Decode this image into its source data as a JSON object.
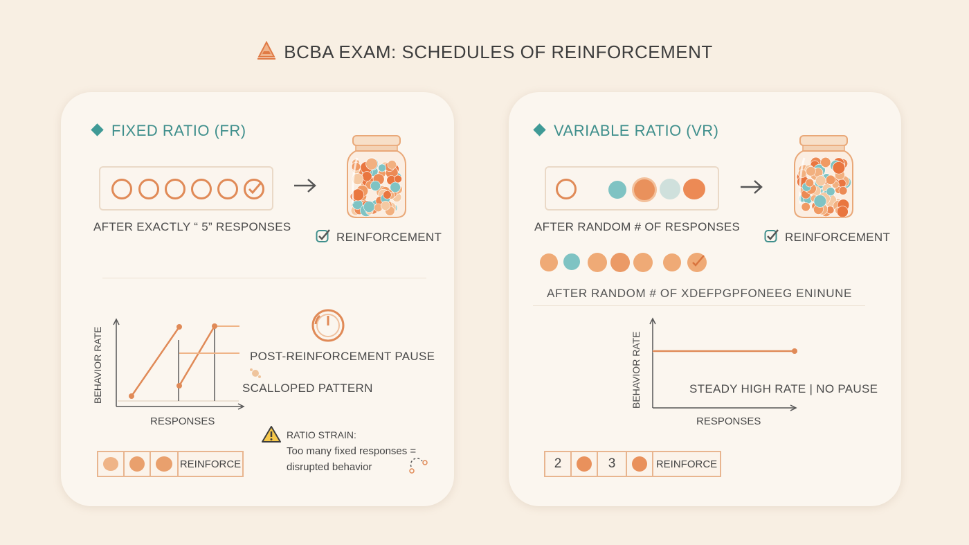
{
  "title": "BCBA EXAM: SCHEDULES OF REINFORCEMENT",
  "colors": {
    "teal": "#3f9a96",
    "orange": "#e08a57",
    "light_orange": "#efb487",
    "background": "#f8efe3",
    "card": "#fbf6ef"
  },
  "fr": {
    "heading": "FIXED RATIO (FR)",
    "caption": "AFTER EXACTLY “ 5” RESPONSES",
    "reinforcement": "REINFORCEMENT",
    "chart": {
      "ylabel": "BEHAVIOR RATE",
      "xlabel": "RESPONSES",
      "pause_label": "POST-REINFORCEMENT PAUSE",
      "pattern_label": "SCALLOPED PATTERN"
    },
    "strain": {
      "title": "RATIO STRAIN:",
      "line1": "Too many fixed responses =",
      "line2": "disrupted behavior"
    },
    "reinforce_box": "REINFORCE"
  },
  "vr": {
    "heading": "VARIABLE RATIO (VR)",
    "caption": "AFTER RANDOM # OF RESPONSES",
    "reinforcement": "REINFORCEMENT",
    "caption2": "AFTER RANDOM # OF XDEFPGPFONEEG ENINUNE",
    "chart": {
      "ylabel": "BEHAVIOR RATE",
      "xlabel": "RESPONSES",
      "line_label": "STEADY HIGH RATE | NO PAUSE"
    },
    "reinforce_box": {
      "n1": "2",
      "n2": "3",
      "label": "REINFORCE"
    }
  }
}
